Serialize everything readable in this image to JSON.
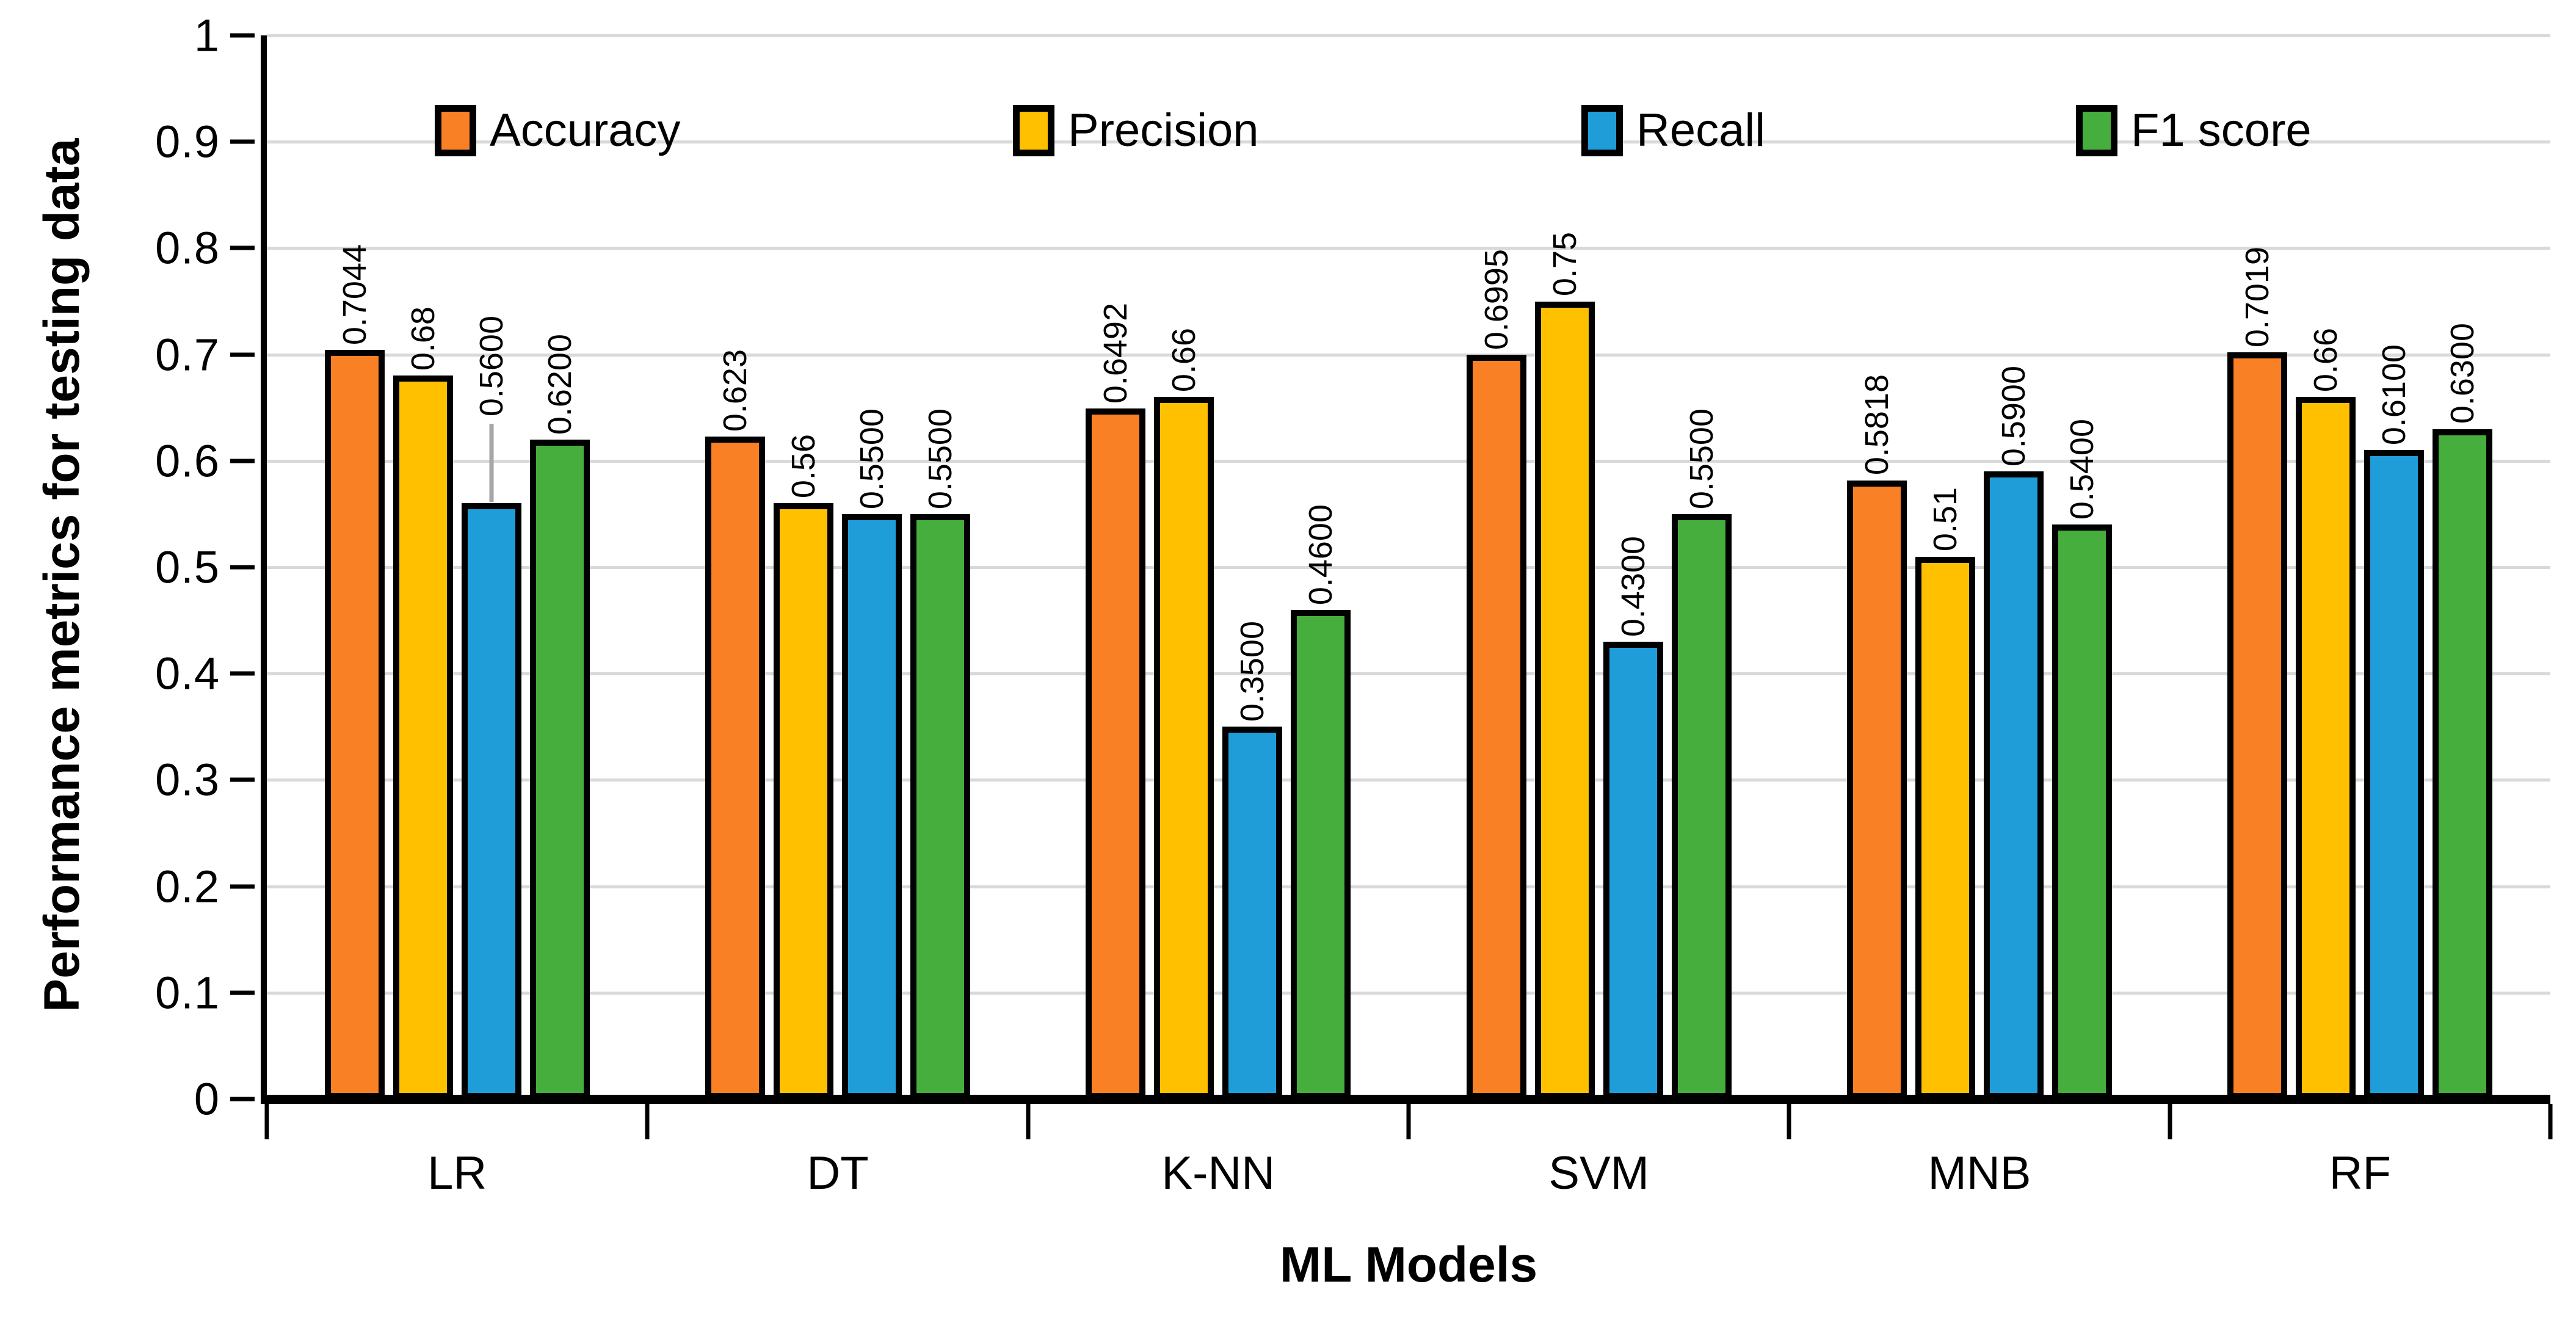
{
  "chart_data": {
    "type": "bar",
    "title": "",
    "xlabel": "ML Models",
    "ylabel": "Performance metrics for testing data",
    "ylim": [
      0,
      1
    ],
    "ytick_step": 0.1,
    "ytick_labels": [
      "1",
      "0.9",
      "0.8",
      "0.7",
      "0.6",
      "0.5",
      "0.4",
      "0.3",
      "0.2",
      "0.1",
      "0"
    ],
    "grid": true,
    "legend_position": "top-inside",
    "categories": [
      "LR",
      "DT",
      "K-NN",
      "SVM",
      "MNB",
      "RF"
    ],
    "series": [
      {
        "name": "Accuracy",
        "color": "#FA8025",
        "values": [
          0.7044,
          0.623,
          0.6492,
          0.6995,
          0.5818,
          0.7019
        ],
        "labels": [
          "0.7044",
          "0.623",
          "0.6492",
          "0.6995",
          "0.5818",
          "0.7019"
        ]
      },
      {
        "name": "Precision",
        "color": "#FFC000",
        "values": [
          0.68,
          0.56,
          0.66,
          0.75,
          0.51,
          0.66
        ],
        "labels": [
          "0.68",
          "0.56",
          "0.66",
          "0.75",
          "0.51",
          "0.66"
        ]
      },
      {
        "name": "Recall",
        "color": "#1F9DD9",
        "values": [
          0.56,
          0.55,
          0.35,
          0.43,
          0.59,
          0.61
        ],
        "labels": [
          "0.5600",
          "0.5500",
          "0.3500",
          "0.4300",
          "0.5900",
          "0.6100"
        ]
      },
      {
        "name": "F1 score",
        "color": "#45AE3D",
        "values": [
          0.62,
          0.55,
          0.46,
          0.55,
          0.54,
          0.63
        ],
        "labels": [
          "0.6200",
          "0.5500",
          "0.4600",
          "0.5500",
          "0.5400",
          "0.6300"
        ]
      }
    ],
    "callout_label": {
      "series": "Recall",
      "category": "LR",
      "leader_color": "#A6A6A6"
    }
  },
  "colors": {
    "background": "#FFFFFF",
    "gridline": "#D9D9D9",
    "axis": "#000000",
    "bar_border": "#000000",
    "label_text": "#000000"
  }
}
